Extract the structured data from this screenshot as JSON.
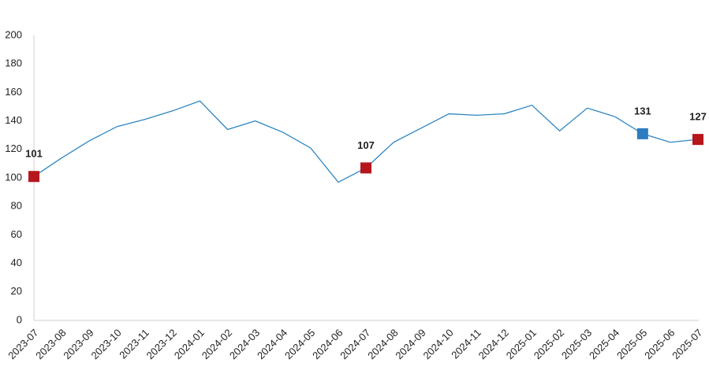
{
  "chart_data": {
    "type": "line",
    "categories": [
      "2023-07",
      "2023-08",
      "2023-09",
      "2023-10",
      "2023-11",
      "2023-12",
      "2024-01",
      "2024-02",
      "2024-03",
      "2024-04",
      "2024-05",
      "2024-06",
      "2024-07",
      "2024-08",
      "2024-09",
      "2024-10",
      "2024-11",
      "2024-12",
      "2025-01",
      "2025-02",
      "2025-03",
      "2025-04",
      "2025-05",
      "2025-06",
      "2025-07"
    ],
    "series": [
      {
        "color": "#2e86c1",
        "values": [
          101,
          114,
          126,
          136,
          141,
          147,
          154,
          134,
          140,
          132,
          121,
          97,
          107,
          125,
          135,
          145,
          144,
          145,
          151,
          133,
          149,
          143,
          131,
          125,
          127
        ]
      }
    ],
    "markers": [
      {
        "index": 0,
        "color": "#b5171c"
      },
      {
        "index": 12,
        "color": "#b5171c"
      },
      {
        "index": 22,
        "color": "#2e7bbf"
      },
      {
        "index": 24,
        "color": "#b5171c"
      }
    ],
    "ylim": [
      0,
      200
    ],
    "yticks": [
      0,
      20,
      40,
      60,
      80,
      100,
      120,
      140,
      160,
      180,
      200
    ],
    "grid": false
  }
}
